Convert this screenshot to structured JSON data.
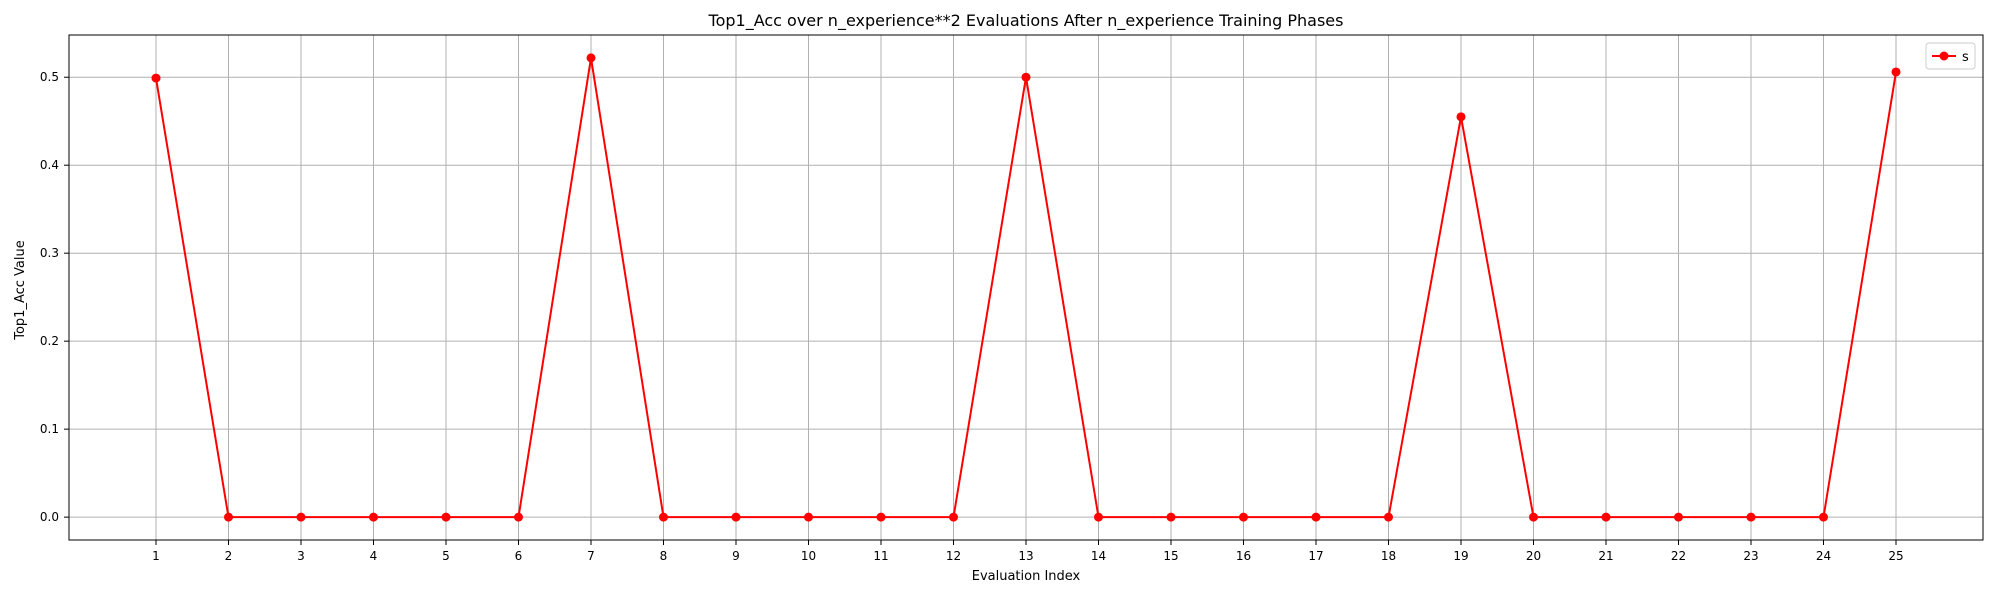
{
  "chart_data": {
    "type": "line",
    "title": "Top1_Acc over n_experience**2 Evaluations After n_experience Training Phases",
    "xlabel": "Evaluation Index",
    "ylabel": "Top1_Acc Value",
    "x": [
      1,
      2,
      3,
      4,
      5,
      6,
      7,
      8,
      9,
      10,
      11,
      12,
      13,
      14,
      15,
      16,
      17,
      18,
      19,
      20,
      21,
      22,
      23,
      24,
      25
    ],
    "xticks": [
      "1",
      "2",
      "3",
      "4",
      "5",
      "6",
      "7",
      "8",
      "9",
      "10",
      "11",
      "12",
      "13",
      "14",
      "15",
      "16",
      "17",
      "18",
      "19",
      "20",
      "21",
      "22",
      "23",
      "24",
      "25"
    ],
    "yticks": [
      "0.0",
      "0.1",
      "0.2",
      "0.3",
      "0.4",
      "0.5"
    ],
    "ytick_values": [
      0.0,
      0.1,
      0.2,
      0.3,
      0.4,
      0.5
    ],
    "xlim": [
      -0.2,
      26.2
    ],
    "ylim": [
      -0.026,
      0.548
    ],
    "grid": true,
    "legend_position": "top-right",
    "series": [
      {
        "name": "s",
        "color": "#ff0000",
        "marker": "circle",
        "values": [
          0.499,
          0.0,
          0.0,
          0.0,
          0.0,
          0.0,
          0.522,
          0.0,
          0.0,
          0.0,
          0.0,
          0.0,
          0.5,
          0.0,
          0.0,
          0.0,
          0.0,
          0.0,
          0.455,
          0.0,
          0.0,
          0.0,
          0.0,
          0.0,
          0.506
        ]
      }
    ]
  }
}
